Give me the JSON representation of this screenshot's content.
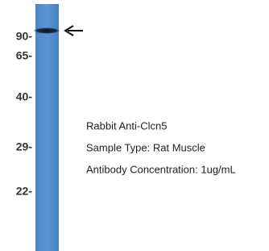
{
  "blot": {
    "markers": [
      "90-",
      "65-",
      "40-",
      "29-",
      "22-"
    ]
  },
  "annotation": {
    "lines": [
      "Rabbit Anti-Clcn5",
      "Sample Type: Rat Muscle",
      "Antibody Concentration: 1ug/mL"
    ]
  }
}
